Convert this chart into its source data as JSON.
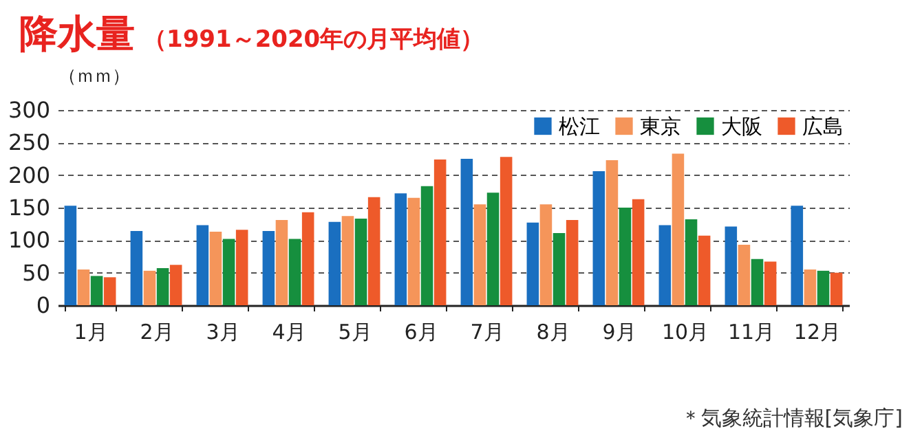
{
  "chart_data": {
    "type": "bar",
    "title": "降水量",
    "subtitle": "（1991～2020年の月平均値）",
    "ylabel": "（ｍｍ）",
    "categories": [
      "1月",
      "2月",
      "3月",
      "4月",
      "5月",
      "6月",
      "7月",
      "8月",
      "9月",
      "10月",
      "11月",
      "12月"
    ],
    "series": [
      {
        "name": "松江",
        "color": "#1a6fc0",
        "values": [
          153,
          114,
          123,
          114,
          128,
          172,
          225,
          127,
          206,
          123,
          121,
          153
        ]
      },
      {
        "name": "東京",
        "color": "#f5955a",
        "values": [
          55,
          53,
          113,
          131,
          137,
          165,
          155,
          155,
          223,
          233,
          93,
          55
        ]
      },
      {
        "name": "大阪",
        "color": "#168f3e",
        "values": [
          45,
          57,
          102,
          102,
          133,
          183,
          173,
          111,
          150,
          132,
          71,
          53
        ]
      },
      {
        "name": "広島",
        "color": "#ee5a2a",
        "values": [
          43,
          62,
          116,
          143,
          166,
          224,
          228,
          131,
          163,
          107,
          67,
          50
        ]
      }
    ],
    "ylim": [
      0,
      300
    ],
    "yticks": [
      0,
      50,
      100,
      150,
      200,
      250,
      300
    ],
    "grid": "y",
    "legend": "top right",
    "annotations": [
      "＊気象統計情報[気象庁]"
    ]
  }
}
